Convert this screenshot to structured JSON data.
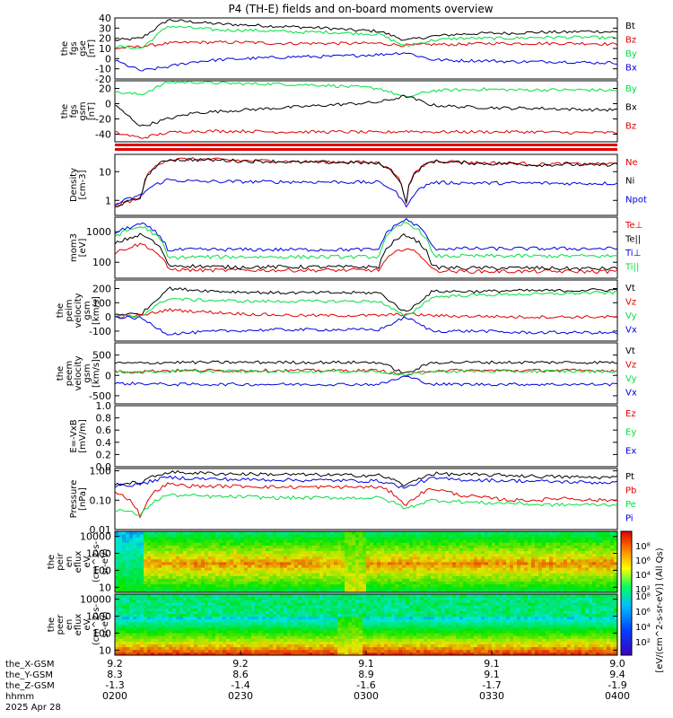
{
  "title": "P4 (TH-E) fields and on-board moments overview",
  "colors": {
    "black": "#000000",
    "red": "#e00000",
    "green": "#00e040",
    "blue": "#0000e0"
  },
  "chart_data": {
    "type": "line",
    "x_tick_labels": {
      "the_X-GSM": [
        "9.2",
        "9.2",
        "9.1",
        "9.1",
        "9.0"
      ],
      "the_Y-GSM": [
        "8.3",
        "8.6",
        "8.9",
        "9.1",
        "9.4"
      ],
      "the_Z-GSM": [
        "-1.3",
        "-1.4",
        "-1.6",
        "-1.7",
        "-1.9"
      ],
      "hhmm": [
        "0200",
        "0230",
        "0300",
        "0330",
        "0400"
      ]
    },
    "row_labels": [
      "the_X-GSM",
      "the_Y-GSM",
      "the_Z-GSM",
      "hhmm",
      "2025 Apr 28"
    ],
    "panels": [
      {
        "id": "fgs_gse",
        "ylabel": [
          "the",
          "fgs",
          "gse",
          "[nT]"
        ],
        "yticks": [
          "40",
          "30",
          "20",
          "10",
          "0",
          "-10",
          "-20"
        ],
        "ylim": [
          -20,
          40
        ],
        "series": [
          {
            "name": "Bt",
            "color": "black",
            "values": [
              18,
              20,
              38,
              36,
              34,
              33,
              32,
              31,
              30,
              28,
              27,
              18,
              22,
              24,
              25,
              25,
              26,
              26,
              27,
              26
            ]
          },
          {
            "name": "Bz",
            "color": "red",
            "values": [
              10,
              12,
              15,
              16,
              16,
              16,
              15,
              15,
              15,
              15,
              15,
              13,
              14,
              14,
              15,
              15,
              15,
              15,
              15,
              14
            ]
          },
          {
            "name": "By",
            "color": "green",
            "values": [
              12,
              10,
              32,
              30,
              28,
              28,
              27,
              26,
              26,
              25,
              24,
              12,
              18,
              20,
              20,
              20,
              21,
              21,
              21,
              20
            ]
          },
          {
            "name": "Bx",
            "color": "blue",
            "values": [
              -2,
              -12,
              -8,
              -3,
              -1,
              0,
              1,
              2,
              2,
              3,
              4,
              6,
              -1,
              -2,
              -2,
              -3,
              -3,
              -3,
              -4,
              -4
            ]
          }
        ]
      },
      {
        "id": "fgs_gsm",
        "ylabel": [
          "the",
          "fgs",
          "gsm",
          "[nT]"
        ],
        "yticks": [
          "20",
          "0",
          "-20",
          "-40"
        ],
        "ylim": [
          -50,
          30
        ],
        "series": [
          {
            "name": "By",
            "color": "green",
            "values": [
              15,
              12,
              28,
              28,
              27,
              26,
              26,
              25,
              24,
              22,
              20,
              8,
              17,
              18,
              19,
              18,
              18,
              18,
              18,
              17
            ]
          },
          {
            "name": "Bx",
            "color": "black",
            "values": [
              -2,
              -30,
              -20,
              -12,
              -10,
              -8,
              -6,
              -4,
              -2,
              0,
              2,
              10,
              -2,
              -4,
              -5,
              -6,
              -6,
              -7,
              -8,
              -8
            ]
          },
          {
            "name": "Bz",
            "color": "red",
            "values": [
              -38,
              -45,
              -38,
              -36,
              -36,
              -36,
              -37,
              -37,
              -37,
              -37,
              -38,
              -36,
              -37,
              -37,
              -37,
              -37,
              -37,
              -38,
              -38,
              -38
            ]
          }
        ]
      },
      {
        "id": "density",
        "ylabel": [
          "Density",
          "[cm-3]"
        ],
        "yticks": [
          "10",
          "1"
        ],
        "scale": "log",
        "ylim": [
          0.3,
          40
        ],
        "series": [
          {
            "name": "Ne",
            "color": "red",
            "values": [
              0.6,
              1.2,
              27,
              27,
              26,
              24,
              24,
              22,
              22,
              22,
              20,
              0.4,
              24,
              22,
              20,
              20,
              18,
              19,
              18,
              19
            ]
          },
          {
            "name": "Ni",
            "color": "black",
            "values": [
              0.6,
              1.2,
              26,
              26,
              25,
              23,
              23,
              21,
              21,
              21,
              19,
              0.4,
              23,
              21,
              19,
              19,
              17,
              18,
              17,
              18
            ]
          },
          {
            "name": "Npot",
            "color": "blue",
            "values": [
              0.7,
              1.5,
              5.2,
              4.6,
              4.5,
              4.5,
              4.4,
              4.4,
              4.4,
              4.3,
              4.2,
              0.5,
              4.2,
              4.1,
              4.0,
              4.0,
              4.0,
              3.9,
              3.9,
              3.9
            ]
          }
        ]
      },
      {
        "id": "temp",
        "ylabel": [
          "mom3",
          "[eV]"
        ],
        "yticks": [
          "1000",
          "100"
        ],
        "scale": "log",
        "ylim": [
          30,
          3000
        ],
        "series": [
          {
            "name": "Te⊥",
            "color": "red",
            "values": [
              200,
              400,
              60,
              55,
              55,
              55,
              55,
              55,
              55,
              55,
              55,
              300,
              55,
              50,
              50,
              50,
              50,
              50,
              50,
              50
            ]
          },
          {
            "name": "Te||",
            "color": "black",
            "values": [
              400,
              800,
              80,
              75,
              70,
              70,
              70,
              70,
              70,
              70,
              70,
              800,
              70,
              65,
              65,
              65,
              65,
              62,
              62,
              62
            ]
          },
          {
            "name": "Ti⊥",
            "color": "blue",
            "values": [
              900,
              1800,
              250,
              260,
              260,
              260,
              260,
              260,
              260,
              260,
              260,
              2500,
              280,
              280,
              280,
              280,
              280,
              280,
              280,
              280
            ]
          },
          {
            "name": "Ti||",
            "color": "green",
            "values": [
              700,
              1500,
              140,
              150,
              150,
              150,
              150,
              150,
              150,
              150,
              150,
              2000,
              160,
              160,
              160,
              160,
              160,
              160,
              160,
              160
            ]
          }
        ]
      },
      {
        "id": "peim_vel",
        "ylabel": [
          "the",
          "peim",
          "velocity",
          "gsm",
          "[km/s]"
        ],
        "yticks": [
          "200",
          "100",
          "0",
          "-100"
        ],
        "ylim": [
          -170,
          260
        ],
        "series": [
          {
            "name": "Vt",
            "color": "black",
            "values": [
              20,
              20,
              200,
              190,
              180,
              175,
              170,
              170,
              170,
              170,
              170,
              30,
              180,
              180,
              180,
              185,
              185,
              185,
              190,
              190
            ]
          },
          {
            "name": "Vz",
            "color": "red",
            "values": [
              0,
              10,
              50,
              40,
              30,
              20,
              15,
              10,
              10,
              10,
              10,
              20,
              10,
              5,
              5,
              0,
              0,
              0,
              0,
              0
            ]
          },
          {
            "name": "Vy",
            "color": "green",
            "values": [
              0,
              10,
              130,
              120,
              115,
              110,
              110,
              110,
              110,
              110,
              110,
              0,
              140,
              150,
              155,
              160,
              160,
              165,
              170,
              170
            ]
          },
          {
            "name": "Vx",
            "color": "blue",
            "values": [
              0,
              -10,
              -120,
              -110,
              -100,
              -95,
              -90,
              -90,
              -90,
              -90,
              -90,
              0,
              -100,
              -100,
              -100,
              -110,
              -110,
              -110,
              -110,
              -115
            ]
          }
        ]
      },
      {
        "id": "peem_vel",
        "ylabel": [
          "the",
          "peem",
          "velocity",
          "gsm",
          "[km/s]"
        ],
        "yticks": [
          "500",
          "0",
          "-500"
        ],
        "ylim": [
          -700,
          800
        ],
        "series": [
          {
            "name": "Vt",
            "color": "black",
            "values": [
              300,
              300,
              320,
              320,
              320,
              320,
              320,
              320,
              320,
              320,
              320,
              40,
              320,
              320,
              320,
              320,
              320,
              320,
              320,
              320
            ]
          },
          {
            "name": "Vz",
            "color": "red",
            "values": [
              100,
              100,
              120,
              120,
              120,
              120,
              120,
              120,
              120,
              120,
              120,
              0,
              120,
              120,
              120,
              120,
              120,
              120,
              120,
              120
            ]
          },
          {
            "name": "Vy",
            "color": "green",
            "values": [
              80,
              80,
              100,
              100,
              100,
              100,
              100,
              100,
              100,
              100,
              100,
              0,
              100,
              100,
              100,
              100,
              100,
              100,
              100,
              100
            ]
          },
          {
            "name": "Vx",
            "color": "blue",
            "values": [
              -200,
              -200,
              -220,
              -220,
              -220,
              -220,
              -220,
              -220,
              -220,
              -220,
              -220,
              -20,
              -220,
              -220,
              -220,
              -220,
              -220,
              -220,
              -220,
              -220
            ]
          }
        ]
      },
      {
        "id": "efield",
        "ylabel": [
          "E=-VxB",
          "[mV/m]"
        ],
        "yticks": [
          "1.0",
          "0.8",
          "0.6",
          "0.4",
          "0.2",
          "0.0"
        ],
        "ylim": [
          0,
          1
        ],
        "series": [
          {
            "name": "Ez",
            "color": "red",
            "values": []
          },
          {
            "name": "Ey",
            "color": "green",
            "values": []
          },
          {
            "name": "Ex",
            "color": "blue",
            "values": []
          }
        ]
      },
      {
        "id": "pressure",
        "ylabel": [
          "Pressure",
          "[nPa]"
        ],
        "yticks": [
          "1.00",
          "0.10",
          "0.01"
        ],
        "scale": "log",
        "ylim": [
          0.01,
          1.2
        ],
        "series": [
          {
            "name": "Pt",
            "color": "black",
            "values": [
              0.35,
              0.4,
              0.9,
              0.85,
              0.8,
              0.78,
              0.76,
              0.74,
              0.72,
              0.7,
              0.7,
              0.3,
              0.8,
              0.75,
              0.72,
              0.7,
              0.65,
              0.62,
              0.6,
              0.6
            ]
          },
          {
            "name": "Pb",
            "color": "red",
            "values": [
              0.2,
              0.02,
              0.35,
              0.3,
              0.3,
              0.3,
              0.28,
              0.28,
              0.28,
              0.28,
              0.28,
              0.06,
              0.25,
              0.15,
              0.12,
              0.1,
              0.1,
              0.12,
              0.1,
              0.1
            ]
          },
          {
            "name": "Pe",
            "color": "green",
            "values": [
              0.05,
              0.03,
              0.15,
              0.14,
              0.13,
              0.13,
              0.12,
              0.12,
              0.12,
              0.12,
              0.12,
              0.05,
              0.1,
              0.09,
              0.08,
              0.08,
              0.07,
              0.07,
              0.07,
              0.07
            ]
          },
          {
            "name": "Pi",
            "color": "blue",
            "values": [
              0.3,
              0.35,
              0.6,
              0.55,
              0.52,
              0.5,
              0.5,
              0.48,
              0.48,
              0.46,
              0.45,
              0.25,
              0.55,
              0.5,
              0.48,
              0.46,
              0.44,
              0.42,
              0.4,
              0.4
            ]
          }
        ]
      },
      {
        "id": "peir_spec",
        "kind": "spectrogram",
        "ylabel": [
          "the",
          "peir",
          "en",
          "eflux",
          "eV",
          "(cm^2-s-",
          "sr-eV)"
        ],
        "yticks": [
          "10000",
          "1000",
          "100",
          "10"
        ],
        "scale": "log",
        "ylim": [
          5,
          20000
        ]
      },
      {
        "id": "peer_spec",
        "kind": "spectrogram",
        "ylabel": [
          "the",
          "peer",
          "en",
          "eflux",
          "eV",
          "(cm^2-s-",
          "sr-eV)"
        ],
        "yticks": [
          "10000",
          "1000",
          "100",
          "10"
        ],
        "scale": "log",
        "ylim": [
          5,
          20000
        ]
      }
    ],
    "colorbar": {
      "ticks": [
        "10⁸",
        "10⁶",
        "10⁴",
        "10²"
      ],
      "ticks_lower": [
        "10⁸",
        "10⁶",
        "10⁴",
        "10²"
      ],
      "label": "[eV/(cm^2-s-sr-eV)] (All Qs)"
    }
  }
}
